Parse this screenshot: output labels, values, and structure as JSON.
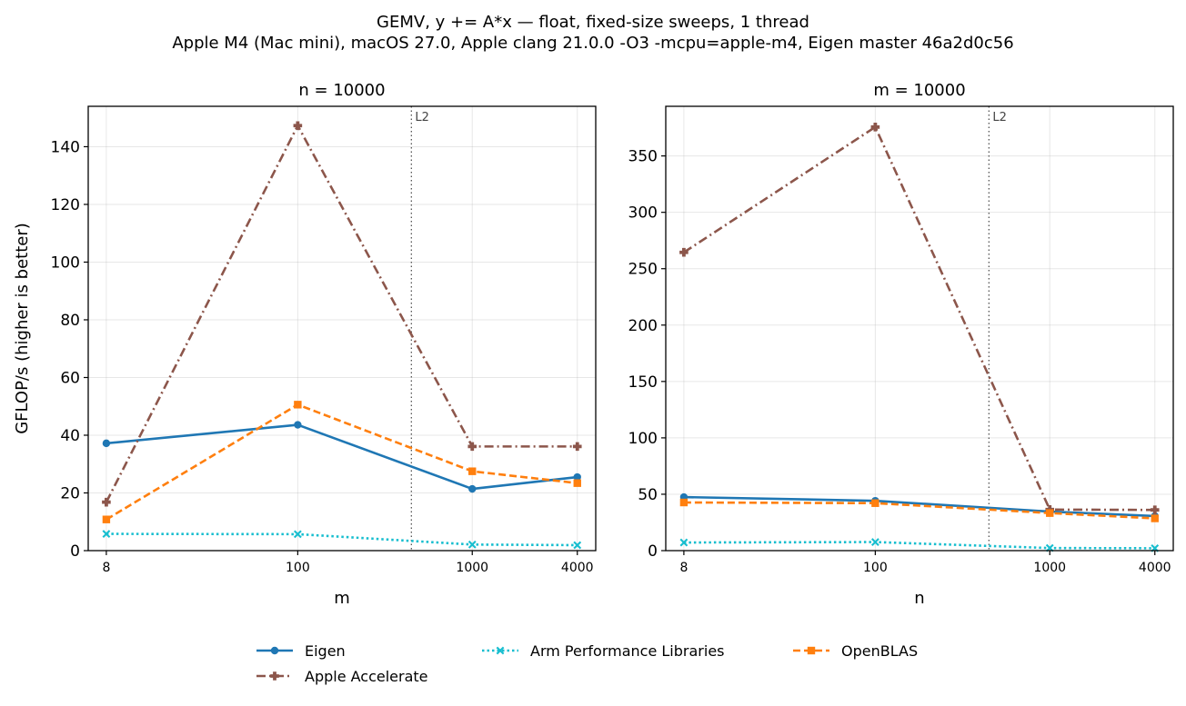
{
  "figure": {
    "title_line1": "GEMV, y += A*x — float, fixed-size sweeps, 1 thread",
    "title_line2": "Apple M4 (Mac mini), macOS 27.0, Apple clang 21.0.0 -O3 -mcpu=apple-m4, Eigen master 46a2d0c56"
  },
  "colors": {
    "Eigen": "#1f77b4",
    "Apple Accelerate": "#8c564b",
    "Arm Performance Libraries": "#17becf",
    "OpenBLAS": "#ff7f0e"
  },
  "legend": {
    "placement": "bottom-center",
    "entries": [
      "Eigen",
      "Apple Accelerate",
      "Arm Performance Libraries",
      "OpenBLAS"
    ]
  },
  "chart_data": [
    {
      "type": "line",
      "title": "n = 10000",
      "xlabel": "m",
      "ylabel": "GFLOP/s (higher is better)",
      "x_scale": "log",
      "x_ticks": [
        8,
        100,
        1000,
        4000
      ],
      "x_tick_labels": [
        "8",
        "100",
        "1000",
        "4000"
      ],
      "xlim": [
        6.3,
        5100
      ],
      "ylim": [
        0,
        154
      ],
      "y_ticks": [
        0,
        20,
        40,
        60,
        80,
        100,
        120,
        140
      ],
      "grid": true,
      "annotation": {
        "text": "L2",
        "x": 448
      },
      "x": [
        8,
        100,
        1000,
        4000
      ],
      "series": [
        {
          "name": "Eigen",
          "values": [
            37.2,
            43.6,
            21.4,
            25.5
          ]
        },
        {
          "name": "Apple Accelerate",
          "values": [
            16.8,
            147.3,
            36.1,
            36.1
          ]
        },
        {
          "name": "Arm Performance Libraries",
          "values": [
            5.8,
            5.7,
            2.1,
            1.9
          ]
        },
        {
          "name": "OpenBLAS",
          "values": [
            10.8,
            50.6,
            27.5,
            23.4
          ]
        }
      ]
    },
    {
      "type": "line",
      "title": "m = 10000",
      "xlabel": "n",
      "ylabel": "",
      "x_scale": "log",
      "x_ticks": [
        8,
        100,
        1000,
        4000
      ],
      "x_tick_labels": [
        "8",
        "100",
        "1000",
        "4000"
      ],
      "xlim": [
        6.3,
        5100
      ],
      "ylim": [
        0,
        394
      ],
      "y_ticks": [
        0,
        50,
        100,
        150,
        200,
        250,
        300,
        350
      ],
      "grid": true,
      "annotation": {
        "text": "L2",
        "x": 448
      },
      "x": [
        8,
        100,
        1000,
        4000
      ],
      "series": [
        {
          "name": "Eigen",
          "values": [
            47.5,
            44.2,
            34.6,
            30.7
          ]
        },
        {
          "name": "Apple Accelerate",
          "values": [
            264.5,
            375.6,
            36.4,
            36.1
          ]
        },
        {
          "name": "Arm Performance Libraries",
          "values": [
            7.2,
            7.6,
            2.3,
            2.1
          ]
        },
        {
          "name": "OpenBLAS",
          "values": [
            42.7,
            42.1,
            33.3,
            28.6
          ]
        }
      ]
    }
  ]
}
